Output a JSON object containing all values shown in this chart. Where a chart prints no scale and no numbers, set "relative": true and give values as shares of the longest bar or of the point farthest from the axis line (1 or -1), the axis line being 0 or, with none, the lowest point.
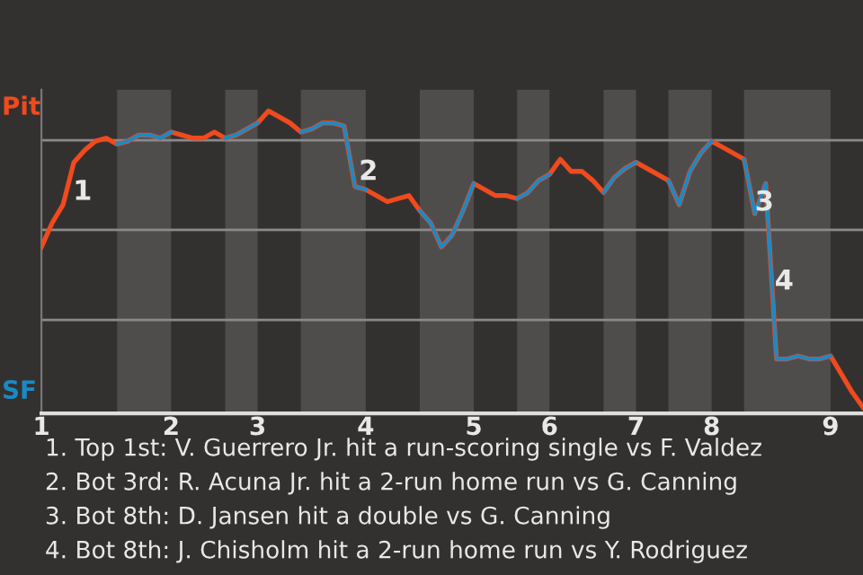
{
  "chart_data": {
    "type": "line",
    "relative": true,
    "categories": [
      "1",
      null,
      null,
      null,
      null,
      null,
      null,
      null,
      null,
      null,
      null,
      null,
      "2",
      null,
      null,
      null,
      null,
      null,
      null,
      null,
      "3",
      null,
      null,
      null,
      null,
      null,
      null,
      null,
      null,
      null,
      "4",
      null,
      null,
      null,
      null,
      null,
      null,
      null,
      null,
      null,
      "5",
      null,
      null,
      null,
      null,
      null,
      null,
      "6",
      null,
      null,
      null,
      null,
      null,
      null,
      null,
      "7",
      null,
      null,
      null,
      null,
      null,
      null,
      "8",
      null,
      null,
      null,
      null,
      null,
      null,
      null,
      null,
      null,
      null,
      "9",
      null,
      null,
      null
    ],
    "series": [
      {
        "name": "Pit",
        "color": "#f04a1e",
        "values": [
          0.55,
          0.63,
          0.69,
          0.83,
          0.87,
          0.9,
          0.91,
          0.89,
          0.9,
          0.92,
          0.92,
          0.91,
          0.93,
          0.92,
          0.91,
          0.91,
          0.93,
          0.91,
          0.92,
          0.94,
          0.96,
          1.0,
          0.98,
          0.96,
          0.93,
          0.94,
          0.96,
          0.96,
          0.95,
          0.75,
          0.74,
          0.72,
          0.7,
          0.71,
          0.72,
          0.67,
          0.63,
          0.55,
          0.59,
          0.67,
          0.76,
          0.74,
          0.72,
          0.72,
          0.71,
          0.73,
          0.77,
          0.79,
          0.84,
          0.8,
          0.8,
          0.77,
          0.73,
          0.78,
          0.81,
          0.83,
          0.81,
          0.79,
          0.77,
          0.69,
          0.8,
          0.86,
          0.9,
          0.88,
          0.86,
          0.84,
          0.66,
          0.76,
          0.18,
          0.18,
          0.19,
          0.18,
          0.18,
          0.19,
          0.13,
          0.07,
          0.02
        ]
      },
      {
        "name": "SF",
        "color": "#1a8ac6",
        "values": [
          null,
          null,
          null,
          null,
          null,
          null,
          null,
          0.89,
          0.9,
          0.92,
          0.92,
          0.91,
          0.93,
          null,
          null,
          null,
          null,
          0.91,
          0.92,
          0.94,
          0.96,
          null,
          null,
          null,
          0.93,
          0.94,
          0.96,
          0.96,
          0.95,
          0.75,
          0.74,
          null,
          null,
          null,
          null,
          0.67,
          0.63,
          0.55,
          0.59,
          0.67,
          0.76,
          null,
          null,
          null,
          0.71,
          0.73,
          0.77,
          0.79,
          null,
          null,
          null,
          null,
          0.73,
          0.78,
          0.81,
          0.83,
          null,
          null,
          0.77,
          0.69,
          0.8,
          0.86,
          0.9,
          null,
          null,
          0.84,
          0.66,
          0.76,
          0.18,
          0.18,
          0.19,
          0.18,
          0.18,
          0.19,
          null,
          null,
          null
        ]
      }
    ],
    "annotations": [
      "1",
      "2",
      "3",
      "4",
      "1. Top 1st: V. Guerrero Jr. hit a run-scoring single vs F. Valdez",
      "2. Bot 3rd: R. Acuna Jr. hit a 2-run home run vs G. Canning",
      "3. Bot 8th: D. Jansen hit a double vs G. Canning",
      "4. Bot 8th: J. Chisholm hit a 2-run home run vs Y. Rodriguez"
    ],
    "grid": "y",
    "legend": false,
    "marker": "none",
    "line_style": "solid"
  }
}
